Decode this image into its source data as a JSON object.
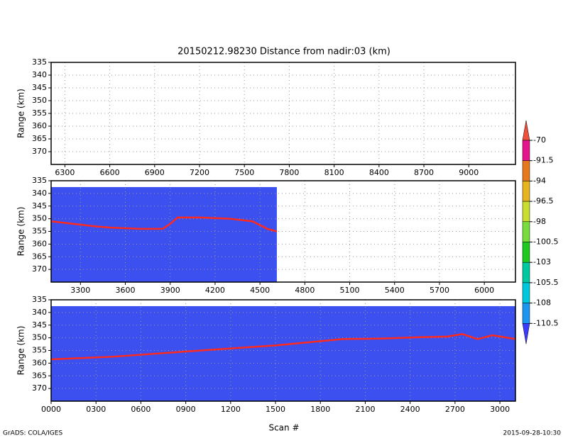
{
  "title": "20150212.98230    Distance from nadir:03 (km)",
  "credits": "GrADS: COLA/IGES",
  "timestamp": "2015-09-28-10:30",
  "colorbar": {
    "levels": [
      -70,
      -91.5,
      -94,
      -96.5,
      -98,
      -100.5,
      -103,
      -105.5,
      -108,
      -110.5
    ],
    "colors": [
      "#f0503c",
      "#e6148c",
      "#e6781e",
      "#e6b41e",
      "#c8dc32",
      "#78dc3c",
      "#1ec81e",
      "#00c8a0",
      "#00c8dc",
      "#1e96f0",
      "#3c3cff"
    ]
  },
  "chart_data": [
    {
      "type": "line",
      "ylabel": "Range (km)",
      "xlim": [
        6208,
        9312
      ],
      "ylim": [
        375,
        335
      ],
      "xticks": [
        6300,
        6600,
        6900,
        7200,
        7500,
        7800,
        8100,
        8400,
        8700,
        9000
      ],
      "yticks": [
        335,
        340,
        345,
        350,
        355,
        360,
        365,
        370
      ],
      "grid": true,
      "series": []
    },
    {
      "type": "line",
      "ylabel": "Range (km)",
      "xlim": [
        3104,
        6208
      ],
      "ylim": [
        375,
        335
      ],
      "xticks": [
        3300,
        3600,
        3900,
        4200,
        4500,
        4800,
        5100,
        5400,
        5700,
        6000
      ],
      "yticks": [
        335,
        340,
        345,
        350,
        355,
        360,
        365,
        370
      ],
      "grid": true,
      "coverage": {
        "x": [
          3104,
          4613
        ],
        "top": 337.5,
        "color": "#3c50f0"
      },
      "series": [
        {
          "color": "#ff2a1e",
          "x": [
            3104,
            3250,
            3400,
            3500,
            3700,
            3850,
            3900,
            3950,
            4100,
            4300,
            4450,
            4550,
            4613
          ],
          "values": [
            351,
            352,
            353,
            353.5,
            354,
            354,
            352,
            349.5,
            349.5,
            350,
            351,
            354,
            355
          ]
        }
      ]
    },
    {
      "type": "line",
      "ylabel": "Range (km)",
      "xlabel": "Scan #",
      "xlim": [
        0,
        3104
      ],
      "ylim": [
        375,
        335
      ],
      "xticks": [
        {
          "value": 0,
          "label": "0000"
        },
        {
          "value": 300,
          "label": "0300"
        },
        {
          "value": 600,
          "label": "0600"
        },
        {
          "value": 900,
          "label": "0900"
        },
        1200,
        1500,
        1800,
        2100,
        2400,
        2700,
        3000
      ],
      "yticks": [
        335,
        340,
        345,
        350,
        355,
        360,
        365,
        370
      ],
      "grid": true,
      "coverage": {
        "x": [
          0,
          3104
        ],
        "top": 337.5,
        "color": "#3c50f0"
      },
      "series": [
        {
          "color": "#ff2a1e",
          "x": [
            0,
            400,
            1000,
            1500,
            1950,
            2200,
            2450,
            2650,
            2750,
            2850,
            2950,
            3104
          ],
          "values": [
            358.5,
            357.5,
            355,
            353,
            350.5,
            350.3,
            349.8,
            349.5,
            348.5,
            350.5,
            349,
            350.5
          ]
        }
      ]
    }
  ]
}
